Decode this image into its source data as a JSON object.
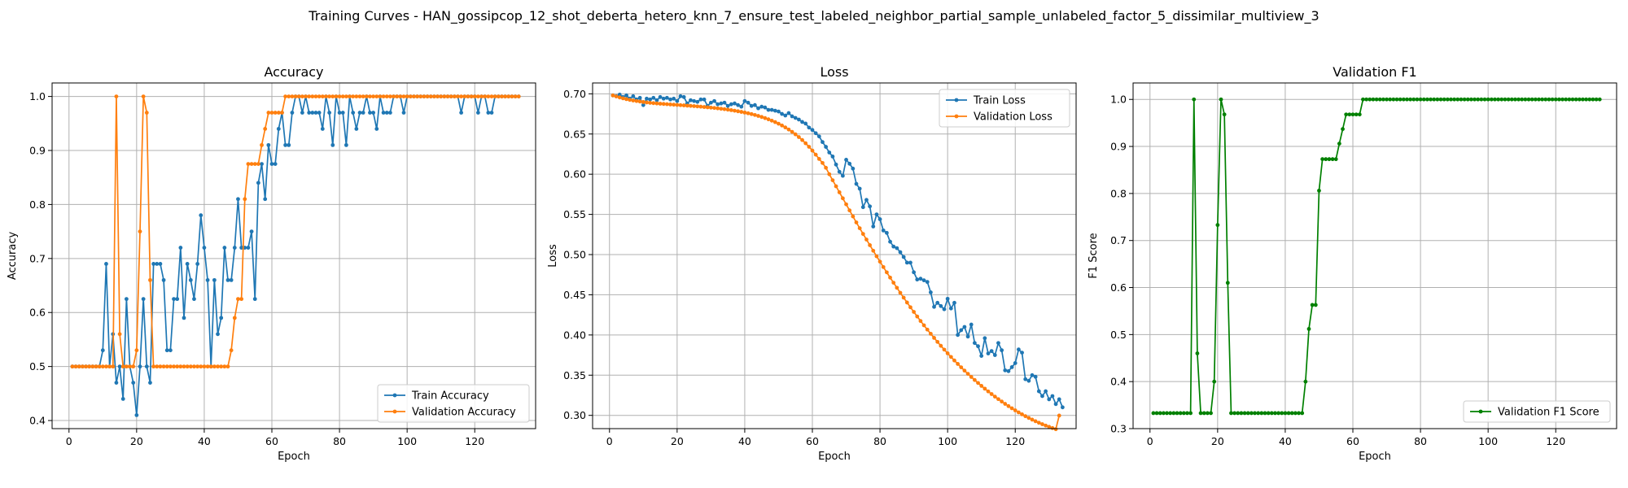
{
  "figure": {
    "suptitle": "Training Curves - HAN_gossipcop_12_shot_deberta_hetero_knn_7_ensure_test_labeled_neighbor_partial_sample_unlabeled_factor_5_dissimilar_multiview_3"
  },
  "colors": {
    "blue": "#1f77b4",
    "orange": "#ff7f0e",
    "green": "#008000"
  },
  "chart_data": [
    {
      "type": "line",
      "title": "Accuracy",
      "xlabel": "Epoch",
      "ylabel": "Accuracy",
      "xlim": [
        -5,
        138
      ],
      "ylim": [
        0.385,
        1.025
      ],
      "xticks": [
        0,
        20,
        40,
        60,
        80,
        100,
        120
      ],
      "yticks": [
        0.4,
        0.5,
        0.6,
        0.7,
        0.8,
        0.9,
        1.0
      ],
      "ytick_labels": [
        "0.4",
        "0.5",
        "0.6",
        "0.7",
        "0.8",
        "0.9",
        "1.0"
      ],
      "grid": true,
      "legend_position": "lower-right",
      "series": [
        {
          "name": "Train Accuracy",
          "color": "#1f77b4",
          "x_start": 1,
          "values": [
            0.5,
            0.5,
            0.5,
            0.5,
            0.5,
            0.5,
            0.5,
            0.5,
            0.5,
            0.53,
            0.69,
            0.5,
            0.56,
            0.47,
            0.5,
            0.44,
            0.625,
            0.5,
            0.47,
            0.41,
            0.5,
            0.625,
            0.5,
            0.47,
            0.69,
            0.69,
            0.69,
            0.66,
            0.53,
            0.53,
            0.625,
            0.625,
            0.72,
            0.59,
            0.69,
            0.66,
            0.625,
            0.69,
            0.78,
            0.72,
            0.66,
            0.5,
            0.66,
            0.56,
            0.59,
            0.72,
            0.66,
            0.66,
            0.72,
            0.81,
            0.72,
            0.72,
            0.72,
            0.75,
            0.625,
            0.84,
            0.875,
            0.81,
            0.91,
            0.875,
            0.875,
            0.94,
            0.97,
            0.91,
            0.91,
            0.97,
            1.0,
            1.0,
            0.97,
            1.0,
            0.97,
            0.97,
            0.97,
            0.97,
            0.94,
            1.0,
            0.97,
            0.91,
            1.0,
            0.97,
            0.97,
            0.91,
            1.0,
            0.97,
            0.94,
            0.97,
            0.97,
            1.0,
            0.97,
            0.97,
            0.94,
            1.0,
            0.97,
            0.97,
            0.97,
            1.0,
            1.0,
            1.0,
            0.97,
            1.0,
            1.0,
            1.0,
            1.0,
            1.0,
            1.0,
            1.0,
            1.0,
            1.0,
            1.0,
            1.0,
            1.0,
            1.0,
            1.0,
            1.0,
            1.0,
            0.97,
            1.0,
            1.0,
            1.0,
            1.0,
            0.97,
            1.0,
            1.0,
            0.97,
            0.97,
            1.0,
            1.0,
            1.0,
            1.0,
            1.0,
            1.0,
            1.0,
            1.0
          ]
        },
        {
          "name": "Validation Accuracy",
          "color": "#ff7f0e",
          "x_start": 1,
          "values": [
            0.5,
            0.5,
            0.5,
            0.5,
            0.5,
            0.5,
            0.5,
            0.5,
            0.5,
            0.5,
            0.5,
            0.5,
            0.5,
            1.0,
            0.56,
            0.5,
            0.5,
            0.5,
            0.5,
            0.53,
            0.75,
            1.0,
            0.97,
            0.66,
            0.5,
            0.5,
            0.5,
            0.5,
            0.5,
            0.5,
            0.5,
            0.5,
            0.5,
            0.5,
            0.5,
            0.5,
            0.5,
            0.5,
            0.5,
            0.5,
            0.5,
            0.5,
            0.5,
            0.5,
            0.5,
            0.5,
            0.5,
            0.53,
            0.59,
            0.625,
            0.625,
            0.81,
            0.875,
            0.875,
            0.875,
            0.875,
            0.91,
            0.94,
            0.97,
            0.97,
            0.97,
            0.97,
            0.97,
            1.0,
            1.0,
            1.0,
            1.0,
            1.0,
            1.0,
            1.0,
            1.0,
            1.0,
            1.0,
            1.0,
            1.0,
            1.0,
            1.0,
            1.0,
            1.0,
            1.0,
            1.0,
            1.0,
            1.0,
            1.0,
            1.0,
            1.0,
            1.0,
            1.0,
            1.0,
            1.0,
            1.0,
            1.0,
            1.0,
            1.0,
            1.0,
            1.0,
            1.0,
            1.0,
            1.0,
            1.0,
            1.0,
            1.0,
            1.0,
            1.0,
            1.0,
            1.0,
            1.0,
            1.0,
            1.0,
            1.0,
            1.0,
            1.0,
            1.0,
            1.0,
            1.0,
            1.0,
            1.0,
            1.0,
            1.0,
            1.0,
            1.0,
            1.0,
            1.0,
            1.0,
            1.0,
            1.0,
            1.0,
            1.0,
            1.0,
            1.0,
            1.0,
            1.0,
            1.0
          ]
        }
      ]
    },
    {
      "type": "line",
      "title": "Loss",
      "xlabel": "Epoch",
      "ylabel": "Loss",
      "xlim": [
        -5,
        138
      ],
      "ylim": [
        0.2835,
        0.7135
      ],
      "xticks": [
        0,
        20,
        40,
        60,
        80,
        100,
        120
      ],
      "yticks": [
        0.3,
        0.35,
        0.4,
        0.45,
        0.5,
        0.55,
        0.6,
        0.65,
        0.7
      ],
      "ytick_labels": [
        "0.30",
        "0.35",
        "0.40",
        "0.45",
        "0.50",
        "0.55",
        "0.60",
        "0.65",
        "0.70"
      ],
      "grid": true,
      "legend_position": "upper-right",
      "series": [
        {
          "name": "Train Loss",
          "color": "#1f77b4",
          "x_start": 1,
          "values": [
            0.698,
            0.697,
            0.699,
            0.696,
            0.698,
            0.694,
            0.697,
            0.693,
            0.695,
            0.686,
            0.694,
            0.693,
            0.695,
            0.692,
            0.696,
            0.694,
            0.695,
            0.693,
            0.694,
            0.691,
            0.697,
            0.696,
            0.688,
            0.692,
            0.691,
            0.69,
            0.693,
            0.693,
            0.685,
            0.689,
            0.691,
            0.687,
            0.688,
            0.689,
            0.685,
            0.687,
            0.688,
            0.686,
            0.684,
            0.691,
            0.689,
            0.685,
            0.686,
            0.682,
            0.684,
            0.683,
            0.68,
            0.68,
            0.679,
            0.678,
            0.675,
            0.673,
            0.676,
            0.672,
            0.67,
            0.668,
            0.665,
            0.663,
            0.658,
            0.655,
            0.651,
            0.647,
            0.64,
            0.634,
            0.627,
            0.622,
            0.612,
            0.603,
            0.598,
            0.618,
            0.613,
            0.607,
            0.588,
            0.582,
            0.559,
            0.568,
            0.56,
            0.535,
            0.55,
            0.544,
            0.53,
            0.527,
            0.516,
            0.51,
            0.508,
            0.503,
            0.497,
            0.49,
            0.49,
            0.478,
            0.469,
            0.47,
            0.468,
            0.466,
            0.453,
            0.435,
            0.44,
            0.436,
            0.432,
            0.445,
            0.433,
            0.44,
            0.4,
            0.406,
            0.41,
            0.398,
            0.413,
            0.39,
            0.386,
            0.374,
            0.396,
            0.377,
            0.38,
            0.375,
            0.39,
            0.381,
            0.356,
            0.355,
            0.36,
            0.365,
            0.382,
            0.378,
            0.345,
            0.343,
            0.35,
            0.348,
            0.33,
            0.324,
            0.33,
            0.32,
            0.324,
            0.314,
            0.32,
            0.31
          ]
        },
        {
          "name": "Validation Loss",
          "color": "#ff7f0e",
          "x_start": 1,
          "values": [
            0.698,
            0.6967,
            0.6955,
            0.6944,
            0.6934,
            0.6925,
            0.6917,
            0.691,
            0.6904,
            0.6898,
            0.6893,
            0.6888,
            0.6884,
            0.688,
            0.6877,
            0.6874,
            0.6871,
            0.6868,
            0.6865,
            0.6862,
            0.6859,
            0.6856,
            0.6853,
            0.685,
            0.6847,
            0.6843,
            0.684,
            0.6836,
            0.6832,
            0.6828,
            0.6824,
            0.6819,
            0.6814,
            0.6809,
            0.6803,
            0.6797,
            0.679,
            0.6783,
            0.6775,
            0.6767,
            0.6758,
            0.6748,
            0.6737,
            0.6725,
            0.6712,
            0.6698,
            0.6683,
            0.6666,
            0.6648,
            0.6628,
            0.6606,
            0.6582,
            0.6556,
            0.6527,
            0.6496,
            0.6462,
            0.6425,
            0.6385,
            0.6341,
            0.6294,
            0.6243,
            0.619,
            0.614,
            0.608,
            0.6,
            0.5925,
            0.585,
            0.5775,
            0.57,
            0.5625,
            0.555,
            0.5475,
            0.54,
            0.5328,
            0.5257,
            0.5187,
            0.5117,
            0.5048,
            0.4979,
            0.4912,
            0.4845,
            0.4779,
            0.4714,
            0.465,
            0.4587,
            0.4525,
            0.4464,
            0.4404,
            0.4345,
            0.4287,
            0.423,
            0.4174,
            0.412,
            0.4067,
            0.4015,
            0.3964,
            0.3914,
            0.3865,
            0.3818,
            0.3772,
            0.3727,
            0.3683,
            0.364,
            0.3598,
            0.3557,
            0.3517,
            0.3478,
            0.344,
            0.3403,
            0.3367,
            0.3332,
            0.3298,
            0.3265,
            0.3233,
            0.3202,
            0.3172,
            0.3143,
            0.3115,
            0.3088,
            0.3062,
            0.3037,
            0.3013,
            0.299,
            0.2968,
            0.2947,
            0.2927,
            0.2908,
            0.289,
            0.2873,
            0.2857,
            0.2842,
            0.2828,
            0.2998
          ]
        }
      ]
    },
    {
      "type": "line",
      "title": "Validation F1",
      "xlabel": "Epoch",
      "ylabel": "F1 Score",
      "xlim": [
        -5,
        138
      ],
      "ylim": [
        0.3,
        1.035
      ],
      "xticks": [
        0,
        20,
        40,
        60,
        80,
        100,
        120
      ],
      "yticks": [
        0.3,
        0.4,
        0.5,
        0.6,
        0.7,
        0.8,
        0.9,
        1.0
      ],
      "ytick_labels": [
        "0.3",
        "0.4",
        "0.5",
        "0.6",
        "0.7",
        "0.8",
        "0.9",
        "1.0"
      ],
      "grid": true,
      "legend_position": "lower-right",
      "series": [
        {
          "name": "Validation F1 Score",
          "color": "#008000",
          "x_start": 1,
          "values": [
            0.333,
            0.333,
            0.333,
            0.333,
            0.333,
            0.333,
            0.333,
            0.333,
            0.333,
            0.333,
            0.333,
            0.333,
            1.0,
            0.46,
            0.333,
            0.333,
            0.333,
            0.333,
            0.4,
            0.733,
            1.0,
            0.968,
            0.61,
            0.333,
            0.333,
            0.333,
            0.333,
            0.333,
            0.333,
            0.333,
            0.333,
            0.333,
            0.333,
            0.333,
            0.333,
            0.333,
            0.333,
            0.333,
            0.333,
            0.333,
            0.333,
            0.333,
            0.333,
            0.333,
            0.333,
            0.4,
            0.512,
            0.563,
            0.563,
            0.806,
            0.873,
            0.873,
            0.873,
            0.873,
            0.873,
            0.906,
            0.937,
            0.968,
            0.968,
            0.968,
            0.968,
            0.968,
            1.0,
            1.0,
            1.0,
            1.0,
            1.0,
            1.0,
            1.0,
            1.0,
            1.0,
            1.0,
            1.0,
            1.0,
            1.0,
            1.0,
            1.0,
            1.0,
            1.0,
            1.0,
            1.0,
            1.0,
            1.0,
            1.0,
            1.0,
            1.0,
            1.0,
            1.0,
            1.0,
            1.0,
            1.0,
            1.0,
            1.0,
            1.0,
            1.0,
            1.0,
            1.0,
            1.0,
            1.0,
            1.0,
            1.0,
            1.0,
            1.0,
            1.0,
            1.0,
            1.0,
            1.0,
            1.0,
            1.0,
            1.0,
            1.0,
            1.0,
            1.0,
            1.0,
            1.0,
            1.0,
            1.0,
            1.0,
            1.0,
            1.0,
            1.0,
            1.0,
            1.0,
            1.0,
            1.0,
            1.0,
            1.0,
            1.0,
            1.0,
            1.0,
            1.0,
            1.0,
            1.0
          ]
        }
      ]
    }
  ]
}
